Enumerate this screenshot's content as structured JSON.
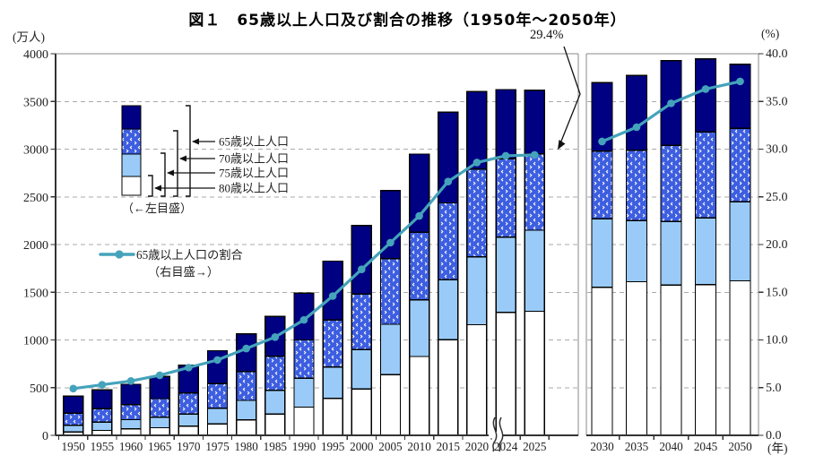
{
  "title": "図１　65歳以上人口及び割合の推移（1950年～2050年）",
  "annotation": {
    "rate_callout": "29.4%"
  },
  "axes": {
    "left_unit": "(万人)",
    "right_unit": "(%)",
    "year_unit": "(年)",
    "left_ticks": [
      "0",
      "500",
      "1000",
      "1500",
      "2000",
      "2500",
      "3000",
      "3500",
      "4000"
    ],
    "right_ticks": [
      "0.0",
      "5.0",
      "10.0",
      "15.0",
      "20.0",
      "25.0",
      "30.0",
      "35.0",
      "40.0"
    ]
  },
  "legend": {
    "band_labels": [
      "65歳以上人口",
      "70歳以上人口",
      "75歳以上人口",
      "80歳以上人口"
    ],
    "left_scale_note": "（←左目盛）",
    "rate_label": "65歳以上人口の割合",
    "right_scale_note": "（右目盛→）"
  },
  "colors": {
    "navy": "#000082",
    "pattern_blue": "#3D5EE0",
    "light_blue": "#9ACBF8",
    "white": "#FFFFFF",
    "line_teal": "#44A3BB",
    "grid": "#AAAAAA",
    "frame": "#8A8A8A",
    "axis": "#333333",
    "text": "#222222"
  },
  "chart_data": {
    "type": "bar",
    "subtype": "stacked-bar-with-line",
    "title": "図１　65歳以上人口及び割合の推移（1950年～2050年）",
    "bar_unit": "万人",
    "line_unit": "%",
    "ylim_left": [
      0,
      4000
    ],
    "ylim_right": [
      0,
      40
    ],
    "grid": "dashed horizontal every 500 / 5.0",
    "legend_position": "upper-left inside plot",
    "stack_note": "bar boundaries are cumulative totals: 80+, 75+, 70+, 65+ populations (left scale); line is 65+ share of total population (right scale)",
    "panels": [
      {
        "years": [
          "1950",
          "1955",
          "1960",
          "1965",
          "1970",
          "1975",
          "1980",
          "1985",
          "1990",
          "1995",
          "2000",
          "2005",
          "2010",
          "2015",
          "2020",
          "2024",
          "2025"
        ],
        "pop_65plus": [
          411,
          475,
          535,
          618,
          733,
          887,
          1065,
          1247,
          1489,
          1826,
          2201,
          2567,
          2948,
          3387,
          3602,
          3624,
          3619
        ],
        "pop_70plus": [
          234,
          280,
          323,
          385,
          444,
          542,
          669,
          827,
          1000,
          1208,
          1481,
          1851,
          2130,
          2437,
          2791,
          2898,
          2950
        ],
        "pop_75plus": [
          106,
          139,
          164,
          189,
          224,
          284,
          366,
          471,
          597,
          717,
          900,
          1164,
          1420,
          1632,
          1871,
          2076,
          2150
        ],
        "pop_80plus": [
          37,
          52,
          67,
          80,
          95,
          120,
          162,
          222,
          296,
          388,
          486,
          636,
          826,
          1002,
          1160,
          1290,
          1300
        ],
        "rate_65plus_pct": [
          4.9,
          5.3,
          5.7,
          6.3,
          7.1,
          7.9,
          9.1,
          10.3,
          12.1,
          14.6,
          17.4,
          20.2,
          23.0,
          26.6,
          28.6,
          29.3,
          29.4
        ],
        "axis_break_after": "2020"
      },
      {
        "years": [
          "2030",
          "2035",
          "2040",
          "2045",
          "2050"
        ],
        "pop_65plus": [
          3696,
          3774,
          3928,
          3945,
          3888
        ],
        "pop_70plus": [
          2980,
          2990,
          3040,
          3180,
          3220
        ],
        "pop_75plus": [
          2270,
          2250,
          2240,
          2280,
          2450
        ],
        "pop_80plus": [
          1550,
          1610,
          1575,
          1580,
          1620
        ],
        "rate_65plus_pct": [
          30.8,
          32.3,
          34.8,
          36.3,
          37.1
        ]
      }
    ]
  }
}
